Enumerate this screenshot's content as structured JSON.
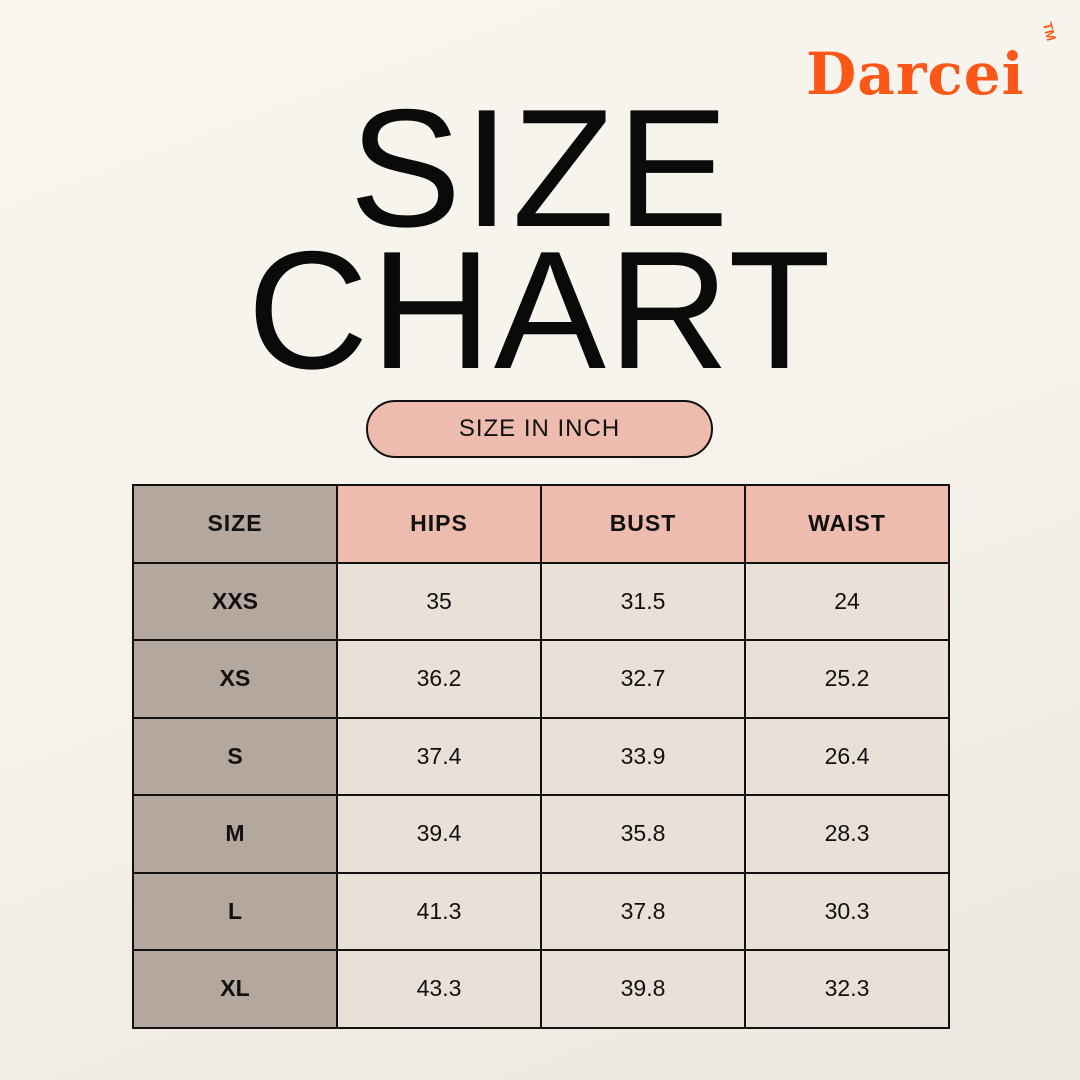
{
  "brand": {
    "logo": "Darcei",
    "trademark": "TM",
    "color": "#fa5718"
  },
  "title": {
    "line1": "SIZE",
    "line2": "CHART"
  },
  "unit_label": "SIZE IN INCH",
  "table": {
    "headers": [
      "SIZE",
      "HIPS",
      "BUST",
      "WAIST"
    ],
    "rows": [
      [
        "XXS",
        "35",
        "31.5",
        "24"
      ],
      [
        "XS",
        "36.2",
        "32.7",
        "25.2"
      ],
      [
        "S",
        "37.4",
        "33.9",
        "26.4"
      ],
      [
        "M",
        "39.4",
        "35.8",
        "28.3"
      ],
      [
        "L",
        "41.3",
        "37.8",
        "30.3"
      ],
      [
        "XL",
        "43.3",
        "39.8",
        "32.3"
      ]
    ]
  }
}
